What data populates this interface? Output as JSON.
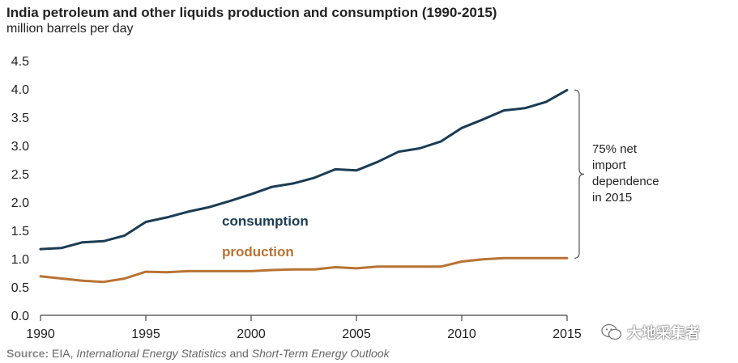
{
  "chart_data": {
    "type": "line",
    "title": "India petroleum and other liquids production and consumption (1990-2015)",
    "subtitle": "million barrels per day",
    "ylim": [
      0,
      4.5
    ],
    "yticks": [
      "0.0",
      "0.5",
      "1.0",
      "1.5",
      "2.0",
      "2.5",
      "3.0",
      "3.5",
      "4.0",
      "4.5"
    ],
    "xlim": [
      1990,
      2015
    ],
    "xticks": [
      "1990",
      "1995",
      "2000",
      "2005",
      "2010",
      "2015"
    ],
    "x": [
      1990,
      1991,
      1992,
      1993,
      1994,
      1995,
      1996,
      1997,
      1998,
      1999,
      2000,
      2001,
      2002,
      2003,
      2004,
      2005,
      2006,
      2007,
      2008,
      2009,
      2010,
      2011,
      2012,
      2013,
      2014,
      2015
    ],
    "grid": false,
    "series": [
      {
        "name": "consumption",
        "color": "#1b3c55",
        "values": [
          1.17,
          1.19,
          1.29,
          1.31,
          1.41,
          1.65,
          1.73,
          1.83,
          1.91,
          2.02,
          2.14,
          2.27,
          2.33,
          2.43,
          2.58,
          2.56,
          2.71,
          2.89,
          2.95,
          3.07,
          3.31,
          3.46,
          3.62,
          3.66,
          3.77,
          3.98
        ]
      },
      {
        "name": "production",
        "color": "#b87333",
        "values": [
          0.69,
          0.65,
          0.61,
          0.59,
          0.65,
          0.77,
          0.76,
          0.78,
          0.78,
          0.78,
          0.78,
          0.8,
          0.81,
          0.81,
          0.85,
          0.83,
          0.86,
          0.86,
          0.86,
          0.86,
          0.95,
          0.99,
          1.01,
          1.01,
          1.01,
          1.01
        ]
      }
    ],
    "annotation": {
      "lines": [
        "75% net",
        "import",
        "dependence",
        "in 2015"
      ]
    }
  },
  "source": {
    "label": "Source:",
    "org": "EIA,",
    "pub1": "International Energy Statistics",
    "conj": "and",
    "pub2": "Short-Term Energy Outlook"
  },
  "watermark": {
    "text": "大地采集者",
    "icon": "wechat-icon"
  }
}
